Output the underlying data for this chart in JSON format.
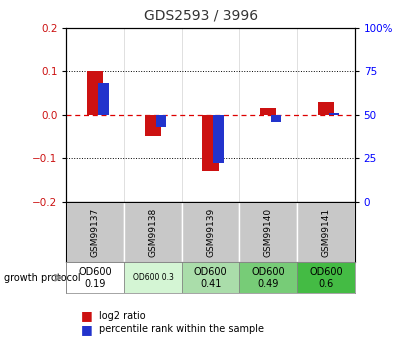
{
  "title": "GDS2593 / 3996",
  "samples": [
    "GSM99137",
    "GSM99138",
    "GSM99139",
    "GSM99140",
    "GSM99141"
  ],
  "log2_ratio": [
    0.1,
    -0.05,
    -0.13,
    0.015,
    0.03
  ],
  "percentile_rank": [
    68,
    43,
    22,
    46,
    51
  ],
  "protocol_labels": [
    "OD600\n0.19",
    "OD600 0.3",
    "OD600\n0.41",
    "OD600\n0.49",
    "OD600\n0.6"
  ],
  "protocol_colors": [
    "#ffffff",
    "#d4f5d4",
    "#aaddaa",
    "#77cc77",
    "#44bb44"
  ],
  "ylim": [
    -0.2,
    0.2
  ],
  "yticks_left": [
    -0.2,
    -0.1,
    0.0,
    0.1,
    0.2
  ],
  "yticks_right_labels": [
    "0",
    "25",
    "50",
    "75",
    "100%"
  ],
  "red_color": "#cc1111",
  "blue_color": "#2233cc",
  "dashed_color": "#dd0000",
  "bg_plot": "#ffffff",
  "bg_names": "#c8c8c8",
  "title_color": "#333333",
  "red_bar_width": 0.28,
  "blue_bar_width": 0.18
}
